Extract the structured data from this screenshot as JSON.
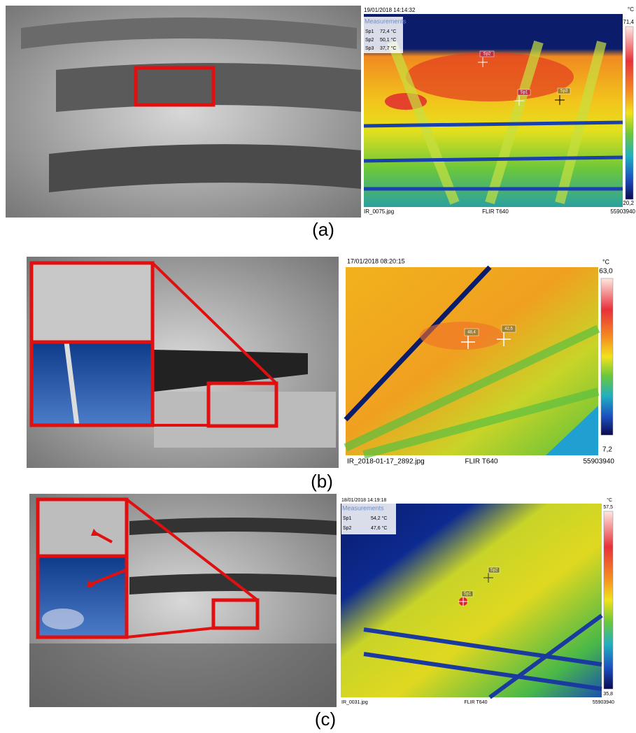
{
  "panels": [
    {
      "label": "(a)",
      "thermal": {
        "timestamp": "19/01/2018 14:14:32",
        "unit": "°C",
        "scale_max": "71,4",
        "scale_min": "20,2",
        "measurements_title": "Measurements",
        "measurements": [
          [
            "Sp1",
            "72,4 °C"
          ],
          [
            "Sp2",
            "50,1 °C"
          ],
          [
            "Sp3",
            "37,7 °C"
          ]
        ],
        "spots": [
          "Sp2",
          "Sp1",
          "Sp3"
        ],
        "filename": "IR_0075.jpg",
        "camera": "FLIR T640",
        "serial": "55903940"
      }
    },
    {
      "label": "(b)",
      "thermal": {
        "timestamp": "17/01/2018 08:20:15",
        "unit": "°C",
        "scale_max": "63,0",
        "scale_min": "7,2",
        "spots": [
          "48,4",
          "42,5"
        ],
        "filename": "IR_2018-01-17_2892.jpg",
        "camera": "FLIR T640",
        "serial": "55903940"
      }
    },
    {
      "label": "(c)",
      "thermal": {
        "timestamp": "18/01/2018 14:19:18",
        "unit": "°C",
        "scale_max": "57,5",
        "scale_min": "35,8",
        "measurements_title": "Measurements",
        "measurements": [
          [
            "Sp1",
            "54,2 °C"
          ],
          [
            "Sp2",
            "47,6 °C"
          ]
        ],
        "spots": [
          "Sp2",
          "Sp1"
        ],
        "filename": "IR_0031.jpg",
        "camera": "FLIR T640",
        "serial": "55903940"
      }
    }
  ]
}
